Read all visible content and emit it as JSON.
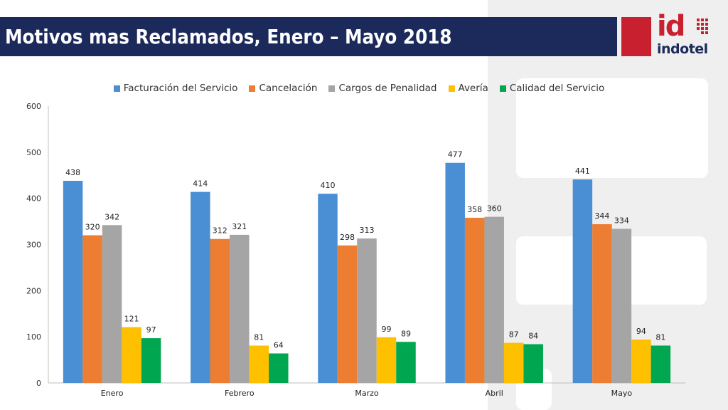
{
  "header": {
    "title": "Motivos mas Reclamados, Enero – Mayo 2018"
  },
  "logo": {
    "mark": "id",
    "name": "indotel",
    "brand_red": "#c8202e",
    "brand_navy": "#1b2a5a"
  },
  "chart_data": {
    "type": "bar",
    "title": "",
    "xlabel": "",
    "ylabel": "",
    "ylim": [
      0,
      600
    ],
    "yticks": [
      0,
      100,
      200,
      300,
      400,
      500,
      600
    ],
    "grid": false,
    "legend_position": "top",
    "categories": [
      "Enero",
      "Febrero",
      "Marzo",
      "Abril",
      "Mayo"
    ],
    "series": [
      {
        "name": "Facturación del Servicio",
        "color": "#4a8fd4",
        "values": [
          438,
          414,
          410,
          477,
          441
        ]
      },
      {
        "name": "Cancelación",
        "color": "#ed7d31",
        "values": [
          320,
          312,
          298,
          358,
          344
        ]
      },
      {
        "name": "Cargos de Penalidad",
        "color": "#a5a5a5",
        "values": [
          342,
          321,
          313,
          360,
          334
        ]
      },
      {
        "name": "Avería",
        "color": "#ffc000",
        "values": [
          121,
          81,
          99,
          87,
          94
        ]
      },
      {
        "name": "Calidad del Servicio",
        "color": "#00a650",
        "values": [
          97,
          64,
          89,
          84,
          81
        ]
      }
    ]
  }
}
